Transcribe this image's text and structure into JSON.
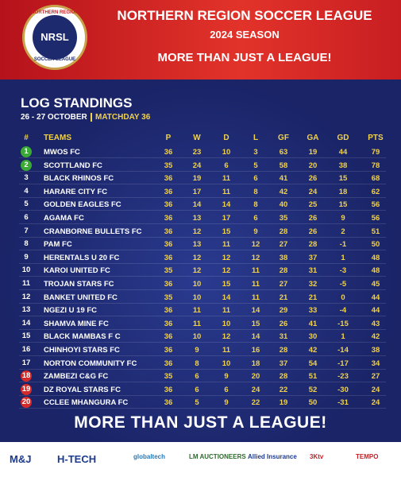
{
  "header": {
    "logo": {
      "top": "NORTHERN REGION",
      "middle": "NRSL",
      "bottom": "SOCCER LEAGUE"
    },
    "title": "NORTHERN REGION SOCCER LEAGUE",
    "season": "2024 SEASON",
    "tagline": "MORE THAN JUST A LEAGUE!"
  },
  "standings": {
    "title": "LOG STANDINGS",
    "date": "26 - 27 OCTOBER",
    "matchday": "MATCHDAY 36",
    "columns": [
      "#",
      "TEAMS",
      "P",
      "W",
      "D",
      "L",
      "GF",
      "GA",
      "GD",
      "PTS"
    ],
    "rows": [
      [
        1,
        "MWOS FC",
        36,
        23,
        10,
        3,
        63,
        19,
        44,
        79
      ],
      [
        2,
        "SCOTTLAND FC",
        35,
        24,
        6,
        5,
        58,
        20,
        38,
        78
      ],
      [
        3,
        "BLACK RHINOS FC",
        36,
        19,
        11,
        6,
        41,
        26,
        15,
        68
      ],
      [
        4,
        "HARARE CITY FC",
        36,
        17,
        11,
        8,
        42,
        24,
        18,
        62
      ],
      [
        5,
        "GOLDEN EAGLES FC",
        36,
        14,
        14,
        8,
        40,
        25,
        15,
        56
      ],
      [
        6,
        "AGAMA FC",
        36,
        13,
        17,
        6,
        35,
        26,
        9,
        56
      ],
      [
        7,
        "CRANBORNE BULLETS FC",
        36,
        12,
        15,
        9,
        28,
        26,
        2,
        51
      ],
      [
        8,
        "PAM FC",
        36,
        13,
        11,
        12,
        27,
        28,
        -1,
        50
      ],
      [
        9,
        "HERENTALS U 20 FC",
        36,
        12,
        12,
        12,
        38,
        37,
        1,
        48
      ],
      [
        10,
        "KAROI UNITED FC",
        35,
        12,
        12,
        11,
        28,
        31,
        -3,
        48
      ],
      [
        11,
        "TROJAN STARS FC",
        36,
        10,
        15,
        11,
        27,
        32,
        -5,
        45
      ],
      [
        12,
        "BANKET UNITED FC",
        35,
        10,
        14,
        11,
        21,
        21,
        0,
        44
      ],
      [
        13,
        "NGEZI U 19 FC",
        36,
        11,
        11,
        14,
        29,
        33,
        -4,
        44
      ],
      [
        14,
        "SHAMVA MINE FC",
        36,
        11,
        10,
        15,
        26,
        41,
        -15,
        43
      ],
      [
        15,
        "BLACK MAMBAS F C",
        36,
        10,
        12,
        14,
        31,
        30,
        1,
        42
      ],
      [
        16,
        "CHINHOYI STARS FC",
        36,
        9,
        11,
        16,
        28,
        42,
        -14,
        38
      ],
      [
        17,
        "NORTON COMMUNITY FC",
        36,
        8,
        10,
        18,
        37,
        54,
        -17,
        34
      ],
      [
        18,
        "ZAMBEZI C&G FC",
        35,
        6,
        9,
        20,
        28,
        51,
        -23,
        27
      ],
      [
        19,
        "DZ ROYAL STARS FC",
        36,
        6,
        6,
        24,
        22,
        52,
        -30,
        24
      ],
      [
        20,
        "CCLEE MHANGURA FC",
        36,
        5,
        9,
        22,
        19,
        50,
        -31,
        24
      ]
    ]
  },
  "footer": {
    "slogan": "MORE THAN JUST A LEAGUE!",
    "sponsors": [
      "M&J",
      "H-TECH",
      "globaltech",
      "LM AUCTIONEERS",
      "Allied Insurance",
      "3Ktv",
      "TEMPO"
    ]
  }
}
